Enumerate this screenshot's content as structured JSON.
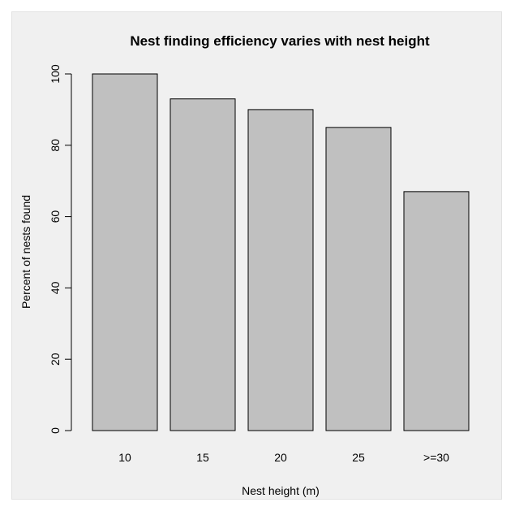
{
  "chart_data": {
    "type": "bar",
    "title": "Nest finding efficiency varies with nest height",
    "xlabel": "Nest height (m)",
    "ylabel": "Percent of nests found",
    "categories": [
      "10",
      "15",
      "20",
      "25",
      ">=30"
    ],
    "values": [
      100,
      93,
      90,
      85,
      67
    ],
    "ylim": [
      0,
      100
    ],
    "yticks": [
      0,
      20,
      40,
      60,
      80,
      100
    ],
    "ytick_labels": [
      "0",
      "20",
      "40",
      "60",
      "80",
      "100"
    ],
    "grid": false,
    "legend": "none",
    "colors": {
      "bar_fill": "#c0c0c0",
      "bar_stroke": "#000000",
      "background": "#f0f0f0"
    }
  }
}
